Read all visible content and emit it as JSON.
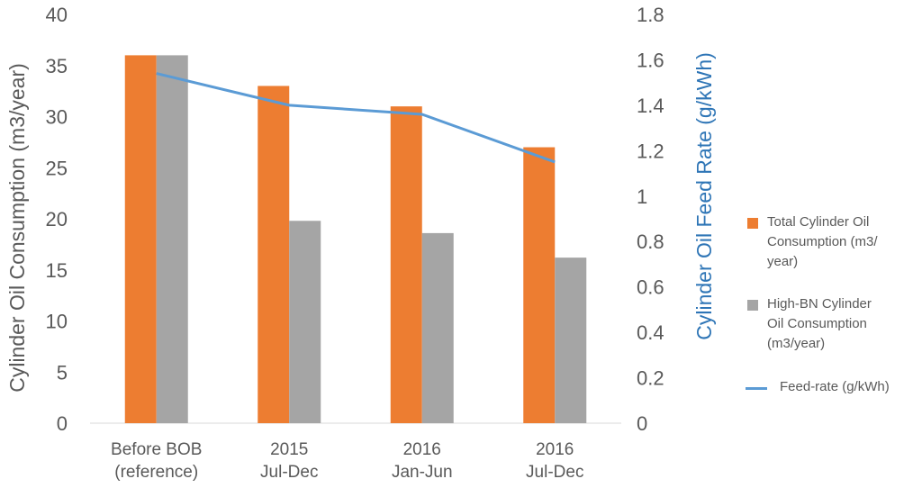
{
  "chart_data": {
    "type": "bar",
    "categories": [
      [
        "Before BOB",
        "(reference)"
      ],
      [
        "2015",
        "Jul-Dec"
      ],
      [
        "2016",
        "Jan-Jun"
      ],
      [
        "2016",
        "Jul-Dec"
      ]
    ],
    "series": [
      {
        "name": "Total Cylinder Oil Consumption (m3/year)",
        "type": "bar",
        "axis": "left",
        "color": "#ed7d31",
        "values": [
          36,
          33,
          31,
          27
        ]
      },
      {
        "name": "High-BN Cylinder Oil Consumption (m3/year)",
        "type": "bar",
        "axis": "left",
        "color": "#a5a5a5",
        "values": [
          36,
          19.8,
          18.6,
          16.2
        ]
      },
      {
        "name": "Feed-rate (g/kWh)",
        "type": "line",
        "axis": "right",
        "color": "#5b9bd5",
        "values": [
          1.54,
          1.4,
          1.36,
          1.15
        ]
      }
    ],
    "ylabel": "Cylinder Oil Consumption (m3/year)",
    "ylabel_right": "Cylinder Oil Feed Rate (g/kWh)",
    "ylim": [
      0,
      40
    ],
    "ylim_right": [
      0,
      1.8
    ],
    "yticks": [
      "0",
      "5",
      "10",
      "15",
      "20",
      "25",
      "30",
      "35",
      "40"
    ],
    "yticks_right": [
      "0",
      "0.2",
      "0.4",
      "0.6",
      "0.8",
      "1",
      "1.2",
      "1.4",
      "1.6",
      "1.8"
    ],
    "grid": false,
    "legend_position": "right"
  },
  "legend": {
    "total_label_lines": [
      "Total Cylinder Oil",
      "Consumption (m3/",
      "year)"
    ],
    "highbn_label_lines": [
      "High-BN Cylinder",
      "Oil Consumption",
      "(m3/year)"
    ],
    "feed_label": "Feed-rate (g/kWh)"
  }
}
